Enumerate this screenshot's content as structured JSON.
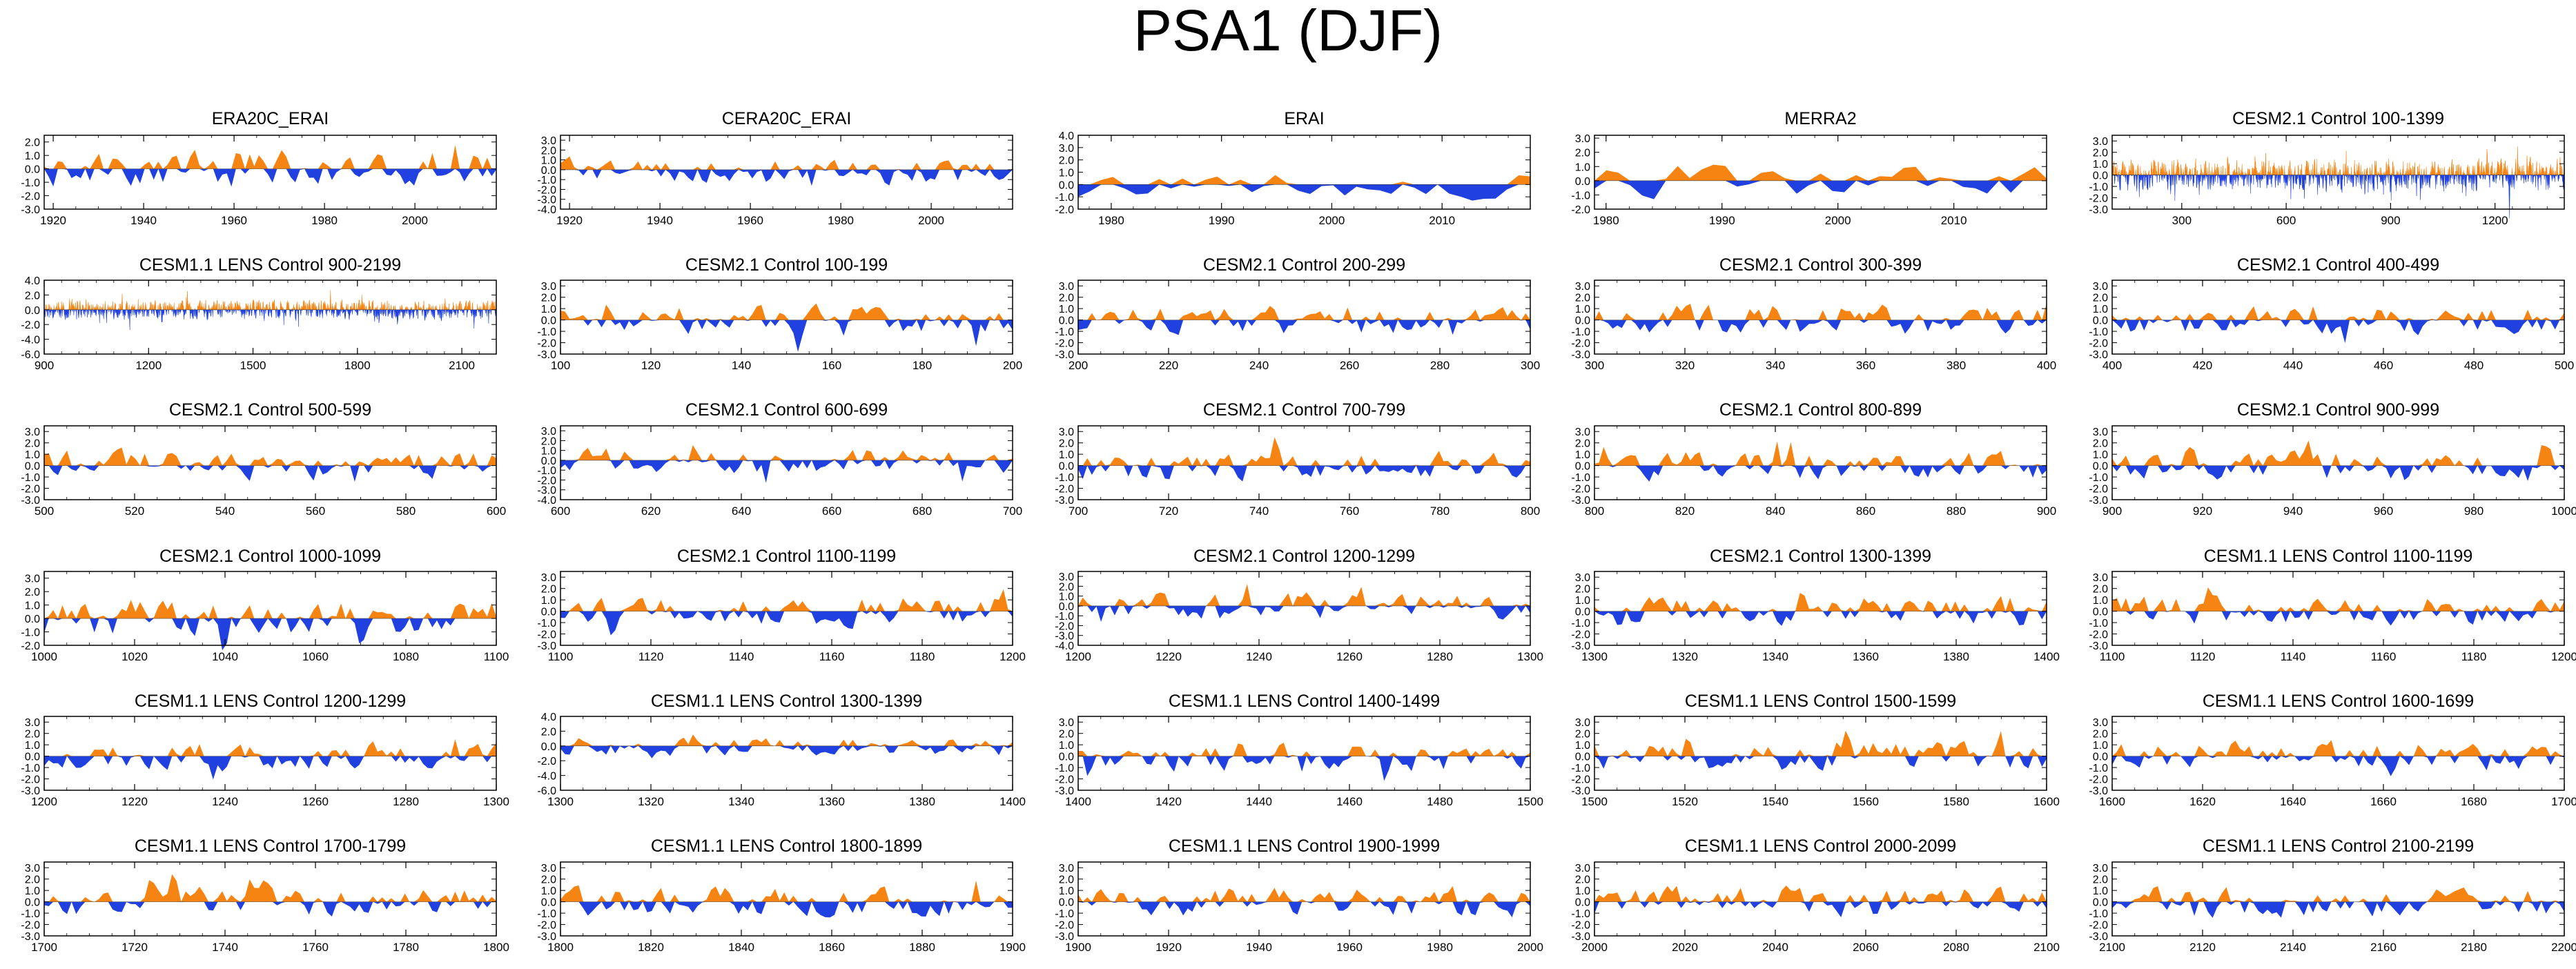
{
  "title": "PSA1 (DJF)",
  "colors": {
    "positive": "#f58413",
    "negative": "#2040e0",
    "axis": "#000000"
  },
  "chart_data": [
    {
      "type": "area",
      "title": "ERA20C_ERAI",
      "x_range": [
        1918,
        2018
      ],
      "xticks": [
        1920,
        1940,
        1960,
        1980,
        2000
      ],
      "yticks": [
        2.0,
        1.0,
        0.0,
        -1.0,
        -2.0,
        -3.0
      ],
      "yticklabels": [
        "2.0",
        "1.0",
        "0.0",
        "-1.0",
        "-2.0",
        "-3.0"
      ],
      "ylim": [
        -3.0,
        2.5
      ],
      "n": 100,
      "seed": 1,
      "amp": 1.1
    },
    {
      "type": "area",
      "title": "CERA20C_ERAI",
      "x_range": [
        1918,
        2018
      ],
      "xticks": [
        1920,
        1940,
        1960,
        1980,
        2000
      ],
      "yticks": [
        3.0,
        2.0,
        1.0,
        0.0,
        -1.0,
        -2.0,
        -3.0,
        -4.0
      ],
      "yticklabels": [
        "3.0",
        "2.0",
        "1.0",
        "0.0",
        "-1.0",
        "-2.0",
        "-3.0",
        "-4.0"
      ],
      "ylim": [
        -4.0,
        3.5
      ],
      "n": 100,
      "seed": 2,
      "amp": 1.1
    },
    {
      "type": "area",
      "title": "ERAI",
      "x_range": [
        1977,
        2018
      ],
      "xticks": [
        1980,
        1990,
        2000,
        2010
      ],
      "yticks": [
        4.0,
        3.0,
        2.0,
        1.0,
        0.0,
        -1.0,
        -2.0
      ],
      "yticklabels": [
        "4.0",
        "3.0",
        "2.0",
        "1.0",
        "0.0",
        "-1.0",
        "-2.0"
      ],
      "ylim": [
        -2.0,
        4.0
      ],
      "n": 40,
      "seed": 3,
      "amp": 0.9
    },
    {
      "type": "area",
      "title": "MERRA2",
      "x_range": [
        1979,
        2018
      ],
      "xticks": [
        1980,
        1990,
        2000,
        2010
      ],
      "yticks": [
        3.0,
        2.0,
        1.0,
        0.0,
        -1.0,
        -2.0
      ],
      "yticklabels": [
        "3.0",
        "2.0",
        "1.0",
        "0.0",
        "-1.0",
        "-2.0"
      ],
      "ylim": [
        -2.0,
        3.2
      ],
      "n": 39,
      "seed": 4,
      "amp": 0.9
    },
    {
      "type": "area",
      "title": "CESM2.1 Control 100-1399",
      "x_range": [
        100,
        1399
      ],
      "xticks": [
        300,
        600,
        900,
        1200
      ],
      "yticks": [
        3.0,
        2.0,
        1.0,
        0.0,
        -1.0,
        -2.0,
        -3.0
      ],
      "yticklabels": [
        "3.0",
        "2.0",
        "1.0",
        "0.0",
        "-1.0",
        "-2.0",
        "-3.0"
      ],
      "ylim": [
        -3.0,
        3.5
      ],
      "n": 1299,
      "seed": 5,
      "amp": 1.0
    },
    {
      "type": "area",
      "title": "CESM1.1 LENS Control 900-2199",
      "x_range": [
        900,
        2199
      ],
      "xticks": [
        900,
        1200,
        1500,
        1800,
        2100
      ],
      "yticks": [
        4.0,
        2.0,
        0.0,
        -2.0,
        -4.0,
        -6.0
      ],
      "yticklabels": [
        "4.0",
        "2.0",
        "0.0",
        "-2.0",
        "-4.0",
        "-6.0"
      ],
      "ylim": [
        -6.0,
        4.0
      ],
      "n": 1299,
      "seed": 6,
      "amp": 1.0
    },
    {
      "type": "area",
      "title": "CESM2.1 Control 100-199",
      "x_range": [
        100,
        200
      ],
      "xticks": [
        100,
        120,
        140,
        160,
        180,
        200
      ],
      "yticks": [
        3.0,
        2.0,
        1.0,
        0.0,
        -1.0,
        -2.0,
        -3.0
      ],
      "yticklabels": [
        "3.0",
        "2.0",
        "1.0",
        "0.0",
        "-1.0",
        "-2.0",
        "-3.0"
      ],
      "ylim": [
        -3.0,
        3.5
      ],
      "n": 100,
      "seed": 7,
      "amp": 1.0
    },
    {
      "type": "area",
      "title": "CESM2.1 Control 200-299",
      "x_range": [
        200,
        300
      ],
      "xticks": [
        200,
        220,
        240,
        260,
        280,
        300
      ],
      "yticks": [
        3.0,
        2.0,
        1.0,
        0.0,
        -1.0,
        -2.0,
        -3.0
      ],
      "yticklabels": [
        "3.0",
        "2.0",
        "1.0",
        "0.0",
        "-1.0",
        "-2.0",
        "-3.0"
      ],
      "ylim": [
        -3.0,
        3.5
      ],
      "n": 100,
      "seed": 8,
      "amp": 1.0
    },
    {
      "type": "area",
      "title": "CESM2.1 Control 300-399",
      "x_range": [
        300,
        400
      ],
      "xticks": [
        300,
        320,
        340,
        360,
        380,
        400
      ],
      "yticks": [
        3.0,
        2.0,
        1.0,
        0.0,
        -1.0,
        -2.0,
        -3.0
      ],
      "yticklabels": [
        "3.0",
        "2.0",
        "1.0",
        "0.0",
        "-1.0",
        "-2.0",
        "-3.0"
      ],
      "ylim": [
        -3.0,
        3.5
      ],
      "n": 100,
      "seed": 9,
      "amp": 1.0
    },
    {
      "type": "area",
      "title": "CESM2.1 Control 400-499",
      "x_range": [
        400,
        500
      ],
      "xticks": [
        400,
        420,
        440,
        460,
        480,
        500
      ],
      "yticks": [
        3.0,
        2.0,
        1.0,
        0.0,
        -1.0,
        -2.0,
        -3.0
      ],
      "yticklabels": [
        "3.0",
        "2.0",
        "1.0",
        "0.0",
        "-1.0",
        "-2.0",
        "-3.0"
      ],
      "ylim": [
        -3.0,
        3.5
      ],
      "n": 100,
      "seed": 10,
      "amp": 1.0
    },
    {
      "type": "area",
      "title": "CESM2.1 Control 500-599",
      "x_range": [
        500,
        600
      ],
      "xticks": [
        500,
        520,
        540,
        560,
        580,
        600
      ],
      "yticks": [
        3.0,
        2.0,
        1.0,
        0.0,
        -1.0,
        -2.0,
        -3.0
      ],
      "yticklabels": [
        "3.0",
        "2.0",
        "1.0",
        "0.0",
        "-1.0",
        "-2.0",
        "-3.0"
      ],
      "ylim": [
        -3.0,
        3.5
      ],
      "n": 100,
      "seed": 11,
      "amp": 1.0
    },
    {
      "type": "area",
      "title": "CESM2.1 Control 600-699",
      "x_range": [
        600,
        700
      ],
      "xticks": [
        600,
        620,
        640,
        660,
        680,
        700
      ],
      "yticks": [
        3.0,
        2.0,
        1.0,
        0.0,
        -1.0,
        -2.0,
        -3.0,
        -4.0
      ],
      "yticklabels": [
        "3.0",
        "2.0",
        "1.0",
        "0.0",
        "-1.0",
        "-2.0",
        "-3.0",
        "-4.0"
      ],
      "ylim": [
        -4.0,
        3.5
      ],
      "n": 100,
      "seed": 12,
      "amp": 1.0
    },
    {
      "type": "area",
      "title": "CESM2.1 Control 700-799",
      "x_range": [
        700,
        800
      ],
      "xticks": [
        700,
        720,
        740,
        760,
        780,
        800
      ],
      "yticks": [
        3.0,
        2.0,
        1.0,
        0.0,
        -1.0,
        -2.0,
        -3.0
      ],
      "yticklabels": [
        "3.0",
        "2.0",
        "1.0",
        "0.0",
        "-1.0",
        "-2.0",
        "-3.0"
      ],
      "ylim": [
        -3.0,
        3.5
      ],
      "n": 100,
      "seed": 13,
      "amp": 1.0
    },
    {
      "type": "area",
      "title": "CESM2.1 Control 800-899",
      "x_range": [
        800,
        900
      ],
      "xticks": [
        800,
        820,
        840,
        860,
        880,
        900
      ],
      "yticks": [
        3.0,
        2.0,
        1.0,
        0.0,
        -1.0,
        -2.0,
        -3.0
      ],
      "yticklabels": [
        "3.0",
        "2.0",
        "1.0",
        "0.0",
        "-1.0",
        "-2.0",
        "-3.0"
      ],
      "ylim": [
        -3.0,
        3.5
      ],
      "n": 100,
      "seed": 14,
      "amp": 1.0
    },
    {
      "type": "area",
      "title": "CESM2.1 Control 900-999",
      "x_range": [
        900,
        1000
      ],
      "xticks": [
        900,
        920,
        940,
        960,
        980,
        1000
      ],
      "yticks": [
        3.0,
        2.0,
        1.0,
        0.0,
        -1.0,
        -2.0,
        -3.0
      ],
      "yticklabels": [
        "3.0",
        "2.0",
        "1.0",
        "0.0",
        "-1.0",
        "-2.0",
        "-3.0"
      ],
      "ylim": [
        -3.0,
        3.5
      ],
      "n": 100,
      "seed": 15,
      "amp": 1.0
    },
    {
      "type": "area",
      "title": "CESM2.1 Control 1000-1099",
      "x_range": [
        1000,
        1100
      ],
      "xticks": [
        1000,
        1020,
        1040,
        1060,
        1080,
        1100
      ],
      "yticks": [
        3.0,
        2.0,
        1.0,
        0.0,
        -1.0,
        -2.0
      ],
      "yticklabels": [
        "3.0",
        "2.0",
        "1.0",
        "0.0",
        "-1.0",
        "-2.0"
      ],
      "ylim": [
        -2.0,
        3.5
      ],
      "n": 100,
      "seed": 16,
      "amp": 1.0
    },
    {
      "type": "area",
      "title": "CESM2.1 Control 1100-1199",
      "x_range": [
        1100,
        1200
      ],
      "xticks": [
        1100,
        1120,
        1140,
        1160,
        1180,
        1200
      ],
      "yticks": [
        3.0,
        2.0,
        1.0,
        0.0,
        -1.0,
        -2.0,
        -3.0
      ],
      "yticklabels": [
        "3.0",
        "2.0",
        "1.0",
        "0.0",
        "-1.0",
        "-2.0",
        "-3.0"
      ],
      "ylim": [
        -3.0,
        3.5
      ],
      "n": 100,
      "seed": 17,
      "amp": 1.0
    },
    {
      "type": "area",
      "title": "CESM2.1 Control 1200-1299",
      "x_range": [
        1200,
        1300
      ],
      "xticks": [
        1200,
        1220,
        1240,
        1260,
        1280,
        1300
      ],
      "yticks": [
        3.0,
        2.0,
        1.0,
        0.0,
        -1.0,
        -2.0,
        -3.0,
        -4.0
      ],
      "yticklabels": [
        "3.0",
        "2.0",
        "1.0",
        "0.0",
        "-1.0",
        "-2.0",
        "-3.0",
        "-4.0"
      ],
      "ylim": [
        -4.0,
        3.5
      ],
      "n": 100,
      "seed": 18,
      "amp": 1.0
    },
    {
      "type": "area",
      "title": "CESM2.1 Control 1300-1399",
      "x_range": [
        1300,
        1400
      ],
      "xticks": [
        1300,
        1320,
        1340,
        1360,
        1380,
        1400
      ],
      "yticks": [
        3.0,
        2.0,
        1.0,
        0.0,
        -1.0,
        -2.0,
        -3.0
      ],
      "yticklabels": [
        "3.0",
        "2.0",
        "1.0",
        "0.0",
        "-1.0",
        "-2.0",
        "-3.0"
      ],
      "ylim": [
        -3.0,
        3.5
      ],
      "n": 100,
      "seed": 19,
      "amp": 1.0
    },
    {
      "type": "area",
      "title": "CESM1.1 LENS Control 1100-1199",
      "x_range": [
        1100,
        1200
      ],
      "xticks": [
        1100,
        1120,
        1140,
        1160,
        1180,
        1200
      ],
      "yticks": [
        3.0,
        2.0,
        1.0,
        0.0,
        -1.0,
        -2.0,
        -3.0
      ],
      "yticklabels": [
        "3.0",
        "2.0",
        "1.0",
        "0.0",
        "-1.0",
        "-2.0",
        "-3.0"
      ],
      "ylim": [
        -3.0,
        3.5
      ],
      "n": 100,
      "seed": 20,
      "amp": 1.0
    },
    {
      "type": "area",
      "title": "CESM1.1 LENS Control 1200-1299",
      "x_range": [
        1200,
        1300
      ],
      "xticks": [
        1200,
        1220,
        1240,
        1260,
        1280,
        1300
      ],
      "yticks": [
        3.0,
        2.0,
        1.0,
        0.0,
        -1.0,
        -2.0,
        -3.0
      ],
      "yticklabels": [
        "3.0",
        "2.0",
        "1.0",
        "0.0",
        "-1.0",
        "-2.0",
        "-3.0"
      ],
      "ylim": [
        -3.0,
        3.5
      ],
      "n": 100,
      "seed": 21,
      "amp": 1.0
    },
    {
      "type": "area",
      "title": "CESM1.1 LENS Control 1300-1399",
      "x_range": [
        1300,
        1400
      ],
      "xticks": [
        1300,
        1320,
        1340,
        1360,
        1380,
        1400
      ],
      "yticks": [
        4.0,
        2.0,
        0.0,
        -2.0,
        -4.0,
        -6.0
      ],
      "yticklabels": [
        "4.0",
        "2.0",
        "0.0",
        "-2.0",
        "-4.0",
        "-6.0"
      ],
      "ylim": [
        -6.0,
        4.0
      ],
      "n": 100,
      "seed": 22,
      "amp": 1.0
    },
    {
      "type": "area",
      "title": "CESM1.1 LENS Control 1400-1499",
      "x_range": [
        1400,
        1500
      ],
      "xticks": [
        1400,
        1420,
        1440,
        1460,
        1480,
        1500
      ],
      "yticks": [
        3.0,
        2.0,
        1.0,
        0.0,
        -1.0,
        -2.0,
        -3.0
      ],
      "yticklabels": [
        "3.0",
        "2.0",
        "1.0",
        "0.0",
        "-1.0",
        "-2.0",
        "-3.0"
      ],
      "ylim": [
        -3.0,
        3.5
      ],
      "n": 100,
      "seed": 23,
      "amp": 1.0
    },
    {
      "type": "area",
      "title": "CESM1.1 LENS Control 1500-1599",
      "x_range": [
        1500,
        1600
      ],
      "xticks": [
        1500,
        1520,
        1540,
        1560,
        1580,
        1600
      ],
      "yticks": [
        3.0,
        2.0,
        1.0,
        0.0,
        -1.0,
        -2.0,
        -3.0
      ],
      "yticklabels": [
        "3.0",
        "2.0",
        "1.0",
        "0.0",
        "-1.0",
        "-2.0",
        "-3.0"
      ],
      "ylim": [
        -3.0,
        3.5
      ],
      "n": 100,
      "seed": 24,
      "amp": 1.0
    },
    {
      "type": "area",
      "title": "CESM1.1 LENS Control 1600-1699",
      "x_range": [
        1600,
        1700
      ],
      "xticks": [
        1600,
        1620,
        1640,
        1660,
        1680,
        1700
      ],
      "yticks": [
        3.0,
        2.0,
        1.0,
        0.0,
        -1.0,
        -2.0,
        -3.0
      ],
      "yticklabels": [
        "3.0",
        "2.0",
        "1.0",
        "0.0",
        "-1.0",
        "-2.0",
        "-3.0"
      ],
      "ylim": [
        -3.0,
        3.5
      ],
      "n": 100,
      "seed": 25,
      "amp": 1.0
    },
    {
      "type": "area",
      "title": "CESM1.1 LENS Control 1700-1799",
      "x_range": [
        1700,
        1800
      ],
      "xticks": [
        1700,
        1720,
        1740,
        1760,
        1780,
        1800
      ],
      "yticks": [
        3.0,
        2.0,
        1.0,
        0.0,
        -1.0,
        -2.0,
        -3.0
      ],
      "yticklabels": [
        "3.0",
        "2.0",
        "1.0",
        "0.0",
        "-1.0",
        "-2.0",
        "-3.0"
      ],
      "ylim": [
        -3.0,
        3.5
      ],
      "n": 100,
      "seed": 26,
      "amp": 1.0
    },
    {
      "type": "area",
      "title": "CESM1.1 LENS Control 1800-1899",
      "x_range": [
        1800,
        1900
      ],
      "xticks": [
        1800,
        1820,
        1840,
        1860,
        1880,
        1900
      ],
      "yticks": [
        3.0,
        2.0,
        1.0,
        0.0,
        -1.0,
        -2.0,
        -3.0
      ],
      "yticklabels": [
        "3.0",
        "2.0",
        "1.0",
        "0.0",
        "-1.0",
        "-2.0",
        "-3.0"
      ],
      "ylim": [
        -3.0,
        3.5
      ],
      "n": 100,
      "seed": 27,
      "amp": 1.0
    },
    {
      "type": "area",
      "title": "CESM1.1 LENS Control 1900-1999",
      "x_range": [
        1900,
        2000
      ],
      "xticks": [
        1900,
        1920,
        1940,
        1960,
        1980,
        2000
      ],
      "yticks": [
        3.0,
        2.0,
        1.0,
        0.0,
        -1.0,
        -2.0,
        -3.0
      ],
      "yticklabels": [
        "3.0",
        "2.0",
        "1.0",
        "0.0",
        "-1.0",
        "-2.0",
        "-3.0"
      ],
      "ylim": [
        -3.0,
        3.5
      ],
      "n": 100,
      "seed": 28,
      "amp": 1.0
    },
    {
      "type": "area",
      "title": "CESM1.1 LENS Control 2000-2099",
      "x_range": [
        2000,
        2100
      ],
      "xticks": [
        2000,
        2020,
        2040,
        2060,
        2080,
        2100
      ],
      "yticks": [
        3.0,
        2.0,
        1.0,
        0.0,
        -1.0,
        -2.0,
        -3.0
      ],
      "yticklabels": [
        "3.0",
        "2.0",
        "1.0",
        "0.0",
        "-1.0",
        "-2.0",
        "-3.0"
      ],
      "ylim": [
        -3.0,
        3.5
      ],
      "n": 100,
      "seed": 29,
      "amp": 1.0
    },
    {
      "type": "area",
      "title": "CESM1.1 LENS Control 2100-2199",
      "x_range": [
        2100,
        2200
      ],
      "xticks": [
        2100,
        2120,
        2140,
        2160,
        2180,
        2200
      ],
      "yticks": [
        3.0,
        2.0,
        1.0,
        0.0,
        -1.0,
        -2.0,
        -3.0
      ],
      "yticklabels": [
        "3.0",
        "2.0",
        "1.0",
        "0.0",
        "-1.0",
        "-2.0",
        "-3.0"
      ],
      "ylim": [
        -3.0,
        3.5
      ],
      "n": 100,
      "seed": 30,
      "amp": 1.0
    }
  ]
}
